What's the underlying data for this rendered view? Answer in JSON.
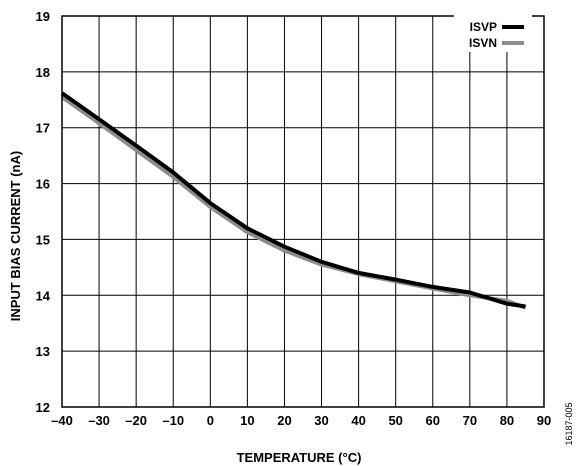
{
  "chart_data": {
    "type": "line",
    "title": "",
    "xlabel": "TEMPERATURE (°C)",
    "ylabel": "INPUT BIAS CURRENT (nA)",
    "xlim": [
      -40,
      90
    ],
    "ylim": [
      12,
      19
    ],
    "xticks": [
      -40,
      -30,
      -20,
      -10,
      0,
      10,
      20,
      30,
      40,
      50,
      60,
      70,
      80,
      90
    ],
    "yticks": [
      12,
      13,
      14,
      15,
      16,
      17,
      18,
      19
    ],
    "xtick_labels": [
      "–40",
      "–30",
      "–20",
      "–10",
      "0",
      "10",
      "20",
      "30",
      "40",
      "50",
      "60",
      "70",
      "80",
      "90"
    ],
    "ytick_labels": [
      "12",
      "13",
      "14",
      "15",
      "16",
      "17",
      "18",
      "19"
    ],
    "grid": true,
    "legend_position": "top-right",
    "series": [
      {
        "name": "ISVP",
        "color": "#000000",
        "x": [
          -40,
          -30,
          -20,
          -10,
          0,
          10,
          20,
          30,
          40,
          50,
          60,
          70,
          80,
          85
        ],
        "y": [
          17.62,
          17.15,
          16.68,
          16.2,
          15.65,
          15.2,
          14.87,
          14.6,
          14.4,
          14.28,
          14.15,
          14.05,
          13.85,
          13.8
        ]
      },
      {
        "name": "ISVN",
        "color": "#8c8c8c",
        "x": [
          -40,
          -30,
          -20,
          -10,
          0,
          10,
          20,
          30,
          40,
          50,
          60,
          70,
          80,
          85
        ],
        "y": [
          17.55,
          17.08,
          16.6,
          16.12,
          15.58,
          15.13,
          14.8,
          14.55,
          14.38,
          14.25,
          14.12,
          14.0,
          13.9,
          13.78
        ]
      }
    ]
  },
  "figure_id": "16187-005"
}
